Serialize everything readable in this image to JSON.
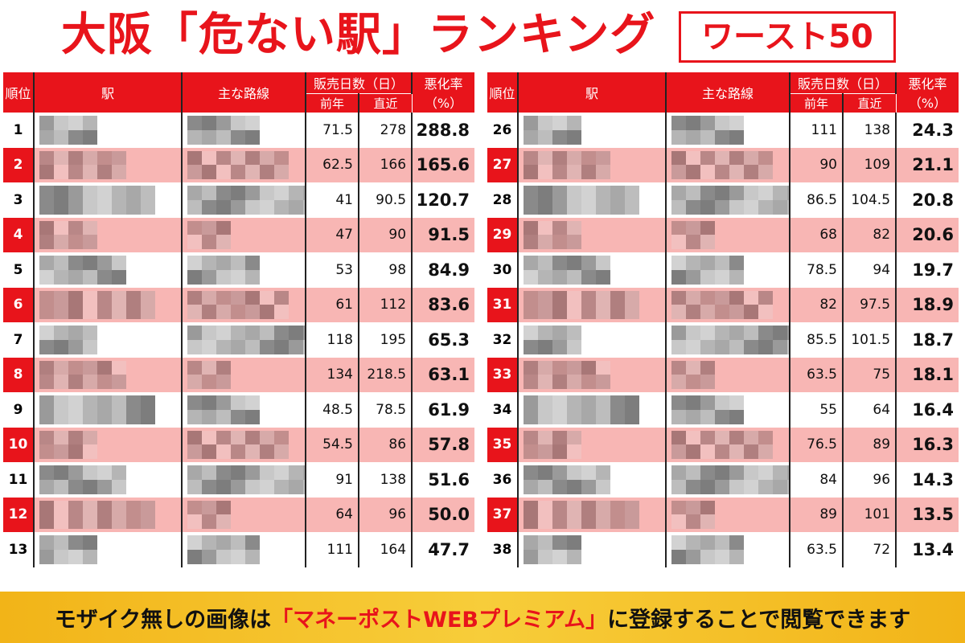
{
  "title": {
    "main": "大阪「危ない駅」ランキング",
    "badge": "ワースト50"
  },
  "columns": {
    "rank": "順位",
    "station": "駅",
    "line": "主な路線",
    "sales_days": "販売日数（日）",
    "prev_year": "前年",
    "recent": "直近",
    "worsening_rate_line1": "悪化率",
    "worsening_rate_line2": "（%）"
  },
  "colors": {
    "accent_red": "#e8141b",
    "row_pink": "#f8b6b4",
    "banner_yellow": "#f2b418"
  },
  "left_rows": [
    {
      "rank": "1",
      "prev": "71.5",
      "recent": "278",
      "rate": "288.8"
    },
    {
      "rank": "2",
      "prev": "62.5",
      "recent": "166",
      "rate": "165.6"
    },
    {
      "rank": "3",
      "prev": "41",
      "recent": "90.5",
      "rate": "120.7"
    },
    {
      "rank": "4",
      "prev": "47",
      "recent": "90",
      "rate": "91.5"
    },
    {
      "rank": "5",
      "prev": "53",
      "recent": "98",
      "rate": "84.9"
    },
    {
      "rank": "6",
      "prev": "61",
      "recent": "112",
      "rate": "83.6"
    },
    {
      "rank": "7",
      "prev": "118",
      "recent": "195",
      "rate": "65.3"
    },
    {
      "rank": "8",
      "prev": "134",
      "recent": "218.5",
      "rate": "63.1"
    },
    {
      "rank": "9",
      "prev": "48.5",
      "recent": "78.5",
      "rate": "61.9"
    },
    {
      "rank": "10",
      "prev": "54.5",
      "recent": "86",
      "rate": "57.8"
    },
    {
      "rank": "11",
      "prev": "91",
      "recent": "138",
      "rate": "51.6"
    },
    {
      "rank": "12",
      "prev": "64",
      "recent": "96",
      "rate": "50.0"
    },
    {
      "rank": "13",
      "prev": "111",
      "recent": "164",
      "rate": "47.7"
    }
  ],
  "right_rows": [
    {
      "rank": "26",
      "prev": "111",
      "recent": "138",
      "rate": "24.3"
    },
    {
      "rank": "27",
      "prev": "90",
      "recent": "109",
      "rate": "21.1"
    },
    {
      "rank": "28",
      "prev": "86.5",
      "recent": "104.5",
      "rate": "20.8"
    },
    {
      "rank": "29",
      "prev": "68",
      "recent": "82",
      "rate": "20.6"
    },
    {
      "rank": "30",
      "prev": "78.5",
      "recent": "94",
      "rate": "19.7"
    },
    {
      "rank": "31",
      "prev": "82",
      "recent": "97.5",
      "rate": "18.9"
    },
    {
      "rank": "32",
      "prev": "85.5",
      "recent": "101.5",
      "rate": "18.7"
    },
    {
      "rank": "33",
      "prev": "63.5",
      "recent": "75",
      "rate": "18.1"
    },
    {
      "rank": "34",
      "prev": "55",
      "recent": "64",
      "rate": "16.4"
    },
    {
      "rank": "35",
      "prev": "76.5",
      "recent": "89",
      "rate": "16.3"
    },
    {
      "rank": "36",
      "prev": "84",
      "recent": "96",
      "rate": "14.3"
    },
    {
      "rank": "37",
      "prev": "89",
      "recent": "101",
      "rate": "13.5"
    },
    {
      "rank": "38",
      "prev": "63.5",
      "recent": "72",
      "rate": "13.4"
    }
  ],
  "banner": {
    "before": "モザイク無しの画像は",
    "highlight": "「マネーポストWEBプレミアム」",
    "after": "に登録することで閲覧できます"
  }
}
